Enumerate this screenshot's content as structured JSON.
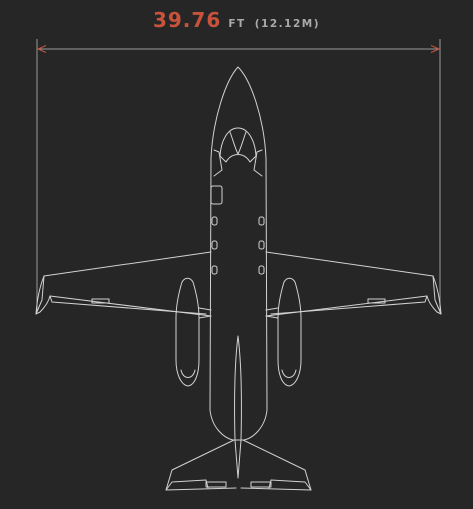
{
  "dimension": {
    "value": "39.76",
    "unit": "FT",
    "metric": "(12.12M)"
  },
  "colors": {
    "background": "#262626",
    "accent": "#c9523a",
    "line": "#d2d2d2",
    "dimension_line": "#9a9a9a",
    "label_grey": "#a9a9a9"
  }
}
